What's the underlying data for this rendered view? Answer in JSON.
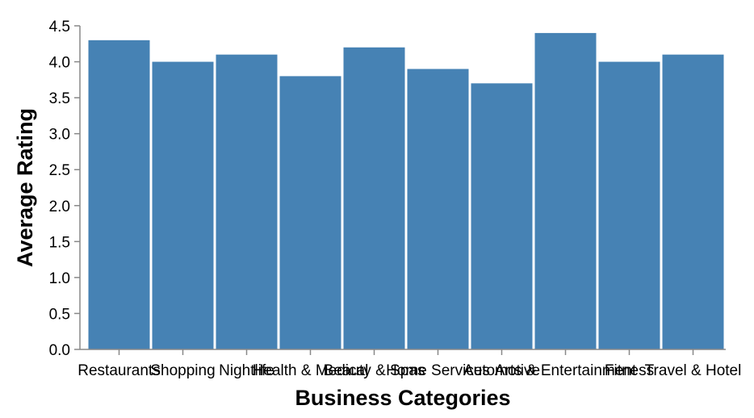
{
  "chart_data": {
    "type": "bar",
    "title": "",
    "xlabel": "Business Categories",
    "ylabel": "Average Rating",
    "categories": [
      "Restaurants",
      "Shopping",
      "Nightlife",
      "Health & Medical",
      "Beauty & Spas",
      "Home Services",
      "Automotive",
      "Arts & Entertainment",
      "Fitness",
      "Travel & Hotel"
    ],
    "values": [
      4.3,
      4.0,
      4.1,
      3.8,
      4.2,
      3.9,
      3.7,
      4.4,
      4.0,
      4.1
    ],
    "ylim": [
      0,
      4.5
    ],
    "yticks": [
      "0.0",
      "0.5",
      "1.0",
      "1.5",
      "2.0",
      "2.5",
      "3.0",
      "3.5",
      "4.0",
      "4.5"
    ],
    "grid": false,
    "colors": {
      "bar": "#4682b4",
      "axis": "#888888",
      "text": "#000000"
    }
  }
}
